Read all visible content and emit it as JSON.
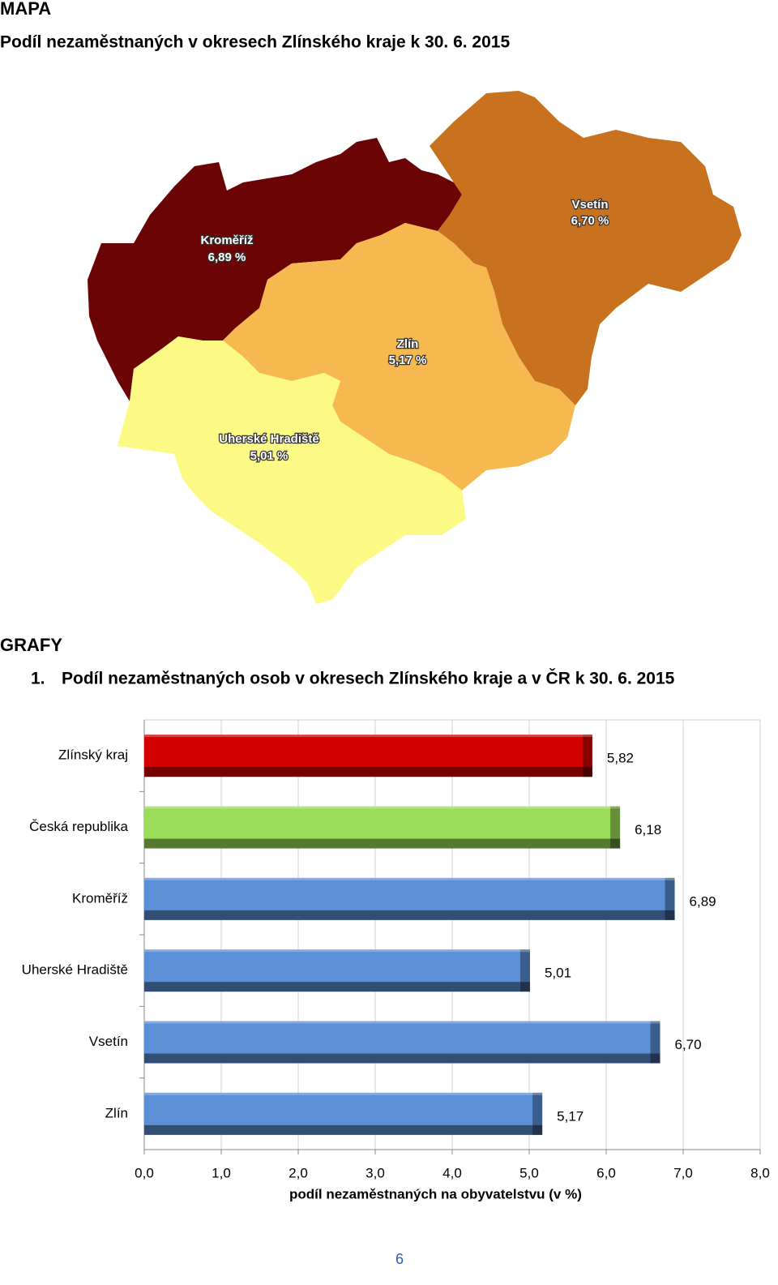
{
  "map_section": {
    "heading": "MAPA",
    "title": "Podíl nezaměstnaných v okresech Zlínského kraje k 30. 6. 2015",
    "regions": [
      {
        "name": "Kroměříž",
        "label": "6,89 %",
        "color": "#6b0404"
      },
      {
        "name": "Vsetín",
        "label": "6,70 %",
        "color": "#c8711f"
      },
      {
        "name": "Zlín",
        "label": "5,17 %",
        "color": "#f6b950"
      },
      {
        "name": "Uherské Hradiště",
        "label": "5,01 %",
        "color": "#fcfa84"
      }
    ]
  },
  "graphs_section": {
    "heading": "GRAFY",
    "number": "1.",
    "title": "Podíl nezaměstnaných osob v okresech Zlínského kraje a v ČR k 30. 6. 2015"
  },
  "chart_data": {
    "type": "bar",
    "orientation": "horizontal",
    "categories": [
      "Zlínský kraj",
      "Česká republika",
      "Kroměříž",
      "Uherské Hradiště",
      "Vsetín",
      "Zlín"
    ],
    "values": [
      5.82,
      6.18,
      6.89,
      5.01,
      6.7,
      5.17
    ],
    "value_labels": [
      "5,82",
      "6,18",
      "6,89",
      "5,01",
      "6,70",
      "5,17"
    ],
    "colors": [
      "#d30000",
      "#9bdc5a",
      "#5b8fd6",
      "#5b8fd6",
      "#5b8fd6",
      "#5b8fd6"
    ],
    "xlim": [
      0,
      8
    ],
    "xticks": [
      {
        "value": 0,
        "label": "0,0"
      },
      {
        "value": 1,
        "label": "1,0"
      },
      {
        "value": 2,
        "label": "2,0"
      },
      {
        "value": 3,
        "label": "3,0"
      },
      {
        "value": 4,
        "label": "4,0"
      },
      {
        "value": 5,
        "label": "5,0"
      },
      {
        "value": 6,
        "label": "6,0"
      },
      {
        "value": 7,
        "label": "7,0"
      },
      {
        "value": 8,
        "label": "8,0"
      }
    ],
    "xlabel": "podíl nezaměstnaných na obyvatelstvu (v %)",
    "grid": true
  },
  "page_number": "6"
}
